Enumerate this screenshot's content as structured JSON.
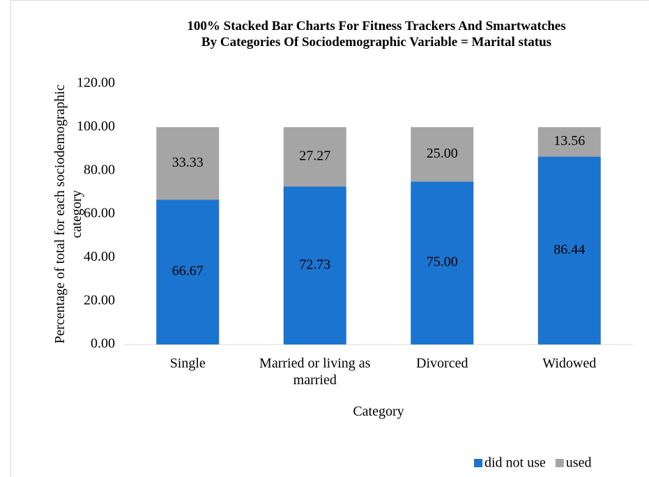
{
  "chart_data": {
    "type": "stacked_bar",
    "title": "100% Stacked Bar Charts For Fitness Trackers And Smartwatches\nBy Categories Of Sociodemographic Variable = Marital status",
    "x_label": "Category",
    "y_label": "Percentage of total for each sociodemographic\ncategory",
    "categories": [
      "Single",
      "Married or living as married",
      "Divorced",
      "Widowed"
    ],
    "series": [
      {
        "name": "did not use",
        "color": "#1b74cf",
        "values": [
          66.67,
          72.73,
          75,
          86.44
        ],
        "value_labels": [
          "66.67",
          "72.73",
          "75.00",
          "86.44"
        ]
      },
      {
        "name": "used",
        "color": "#a5a5a5",
        "values": [
          33.33,
          27.27,
          25,
          13.56
        ],
        "value_labels": [
          "33.33",
          "27.27",
          "25.00",
          "13.56"
        ]
      }
    ],
    "ylim": [
      0,
      120
    ],
    "yticks": [
      {
        "value": 0,
        "label": "0.00"
      },
      {
        "value": 20,
        "label": "20.00"
      },
      {
        "value": 40,
        "label": "40.00"
      },
      {
        "value": 60,
        "label": "60.00"
      },
      {
        "value": 80,
        "label": "80.00"
      },
      {
        "value": 100,
        "label": "100.00"
      },
      {
        "value": 120,
        "label": "120.00"
      }
    ],
    "grid": false,
    "legend": "bottom-right"
  }
}
